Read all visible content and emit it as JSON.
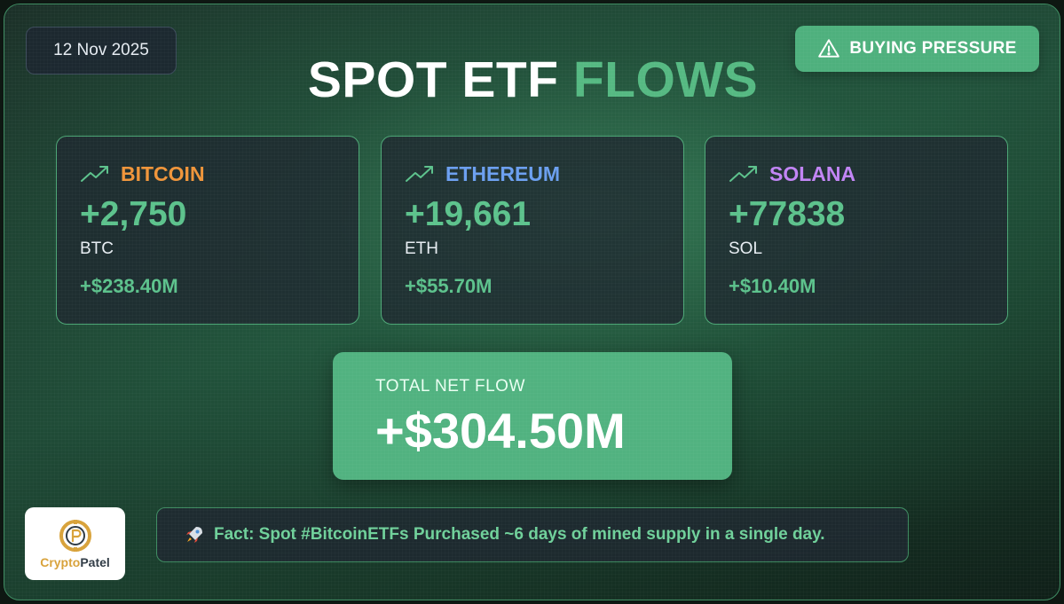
{
  "date": "12 Nov 2025",
  "badge": {
    "label": "BUYING PRESSURE",
    "icon": "warning-icon",
    "color": "#4eb07d"
  },
  "title": {
    "part1": "SPOT ETF",
    "part2": "FLOWS"
  },
  "cards": [
    {
      "name": "BITCOIN",
      "name_color": "#f0953a",
      "amount": "+2,750",
      "unit": "BTC",
      "usd": "+$238.40M",
      "icon": "trending-up-icon"
    },
    {
      "name": "ETHEREUM",
      "name_color": "#6b9ff0",
      "amount": "+19,661",
      "unit": "ETH",
      "usd": "+$55.70M",
      "icon": "trending-up-icon"
    },
    {
      "name": "SOLANA",
      "name_color": "#c184f5",
      "amount": "+77838",
      "unit": "SOL",
      "usd": "+$10.40M",
      "icon": "trending-up-icon"
    }
  ],
  "total": {
    "label": "TOTAL NET FLOW",
    "value": "+$304.50M"
  },
  "logo": {
    "part1": "Crypto",
    "part2": "Patel"
  },
  "fact": {
    "icon": "rocket-icon",
    "text": "Fact: Spot #BitcoinETFs Purchased ~6 days of mined supply in a single day."
  }
}
